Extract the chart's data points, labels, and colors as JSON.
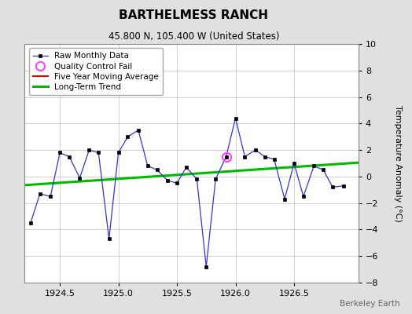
{
  "title": "BARTHELMESS RANCH",
  "subtitle": "45.800 N, 105.400 W (United States)",
  "ylabel": "Temperature Anomaly (°C)",
  "watermark": "Berkeley Earth",
  "xlim": [
    1924.2,
    1927.05
  ],
  "ylim": [
    -8,
    10
  ],
  "xticks": [
    1924.5,
    1925.0,
    1925.5,
    1926.0,
    1926.5
  ],
  "yticks": [
    -8,
    -6,
    -4,
    -2,
    0,
    2,
    4,
    6,
    8,
    10
  ],
  "background_color": "#e0e0e0",
  "plot_bg_color": "#ffffff",
  "raw_x": [
    1924.25,
    1924.33,
    1924.42,
    1924.5,
    1924.58,
    1924.67,
    1924.75,
    1924.83,
    1924.92,
    1925.0,
    1925.08,
    1925.17,
    1925.25,
    1925.33,
    1925.42,
    1925.5,
    1925.58,
    1925.67,
    1925.75,
    1925.83,
    1925.92,
    1926.0,
    1926.08,
    1926.17,
    1926.25,
    1926.33,
    1926.42,
    1926.5,
    1926.58,
    1926.67,
    1926.75,
    1926.83,
    1926.92
  ],
  "raw_y": [
    -3.5,
    -1.3,
    -1.5,
    1.8,
    1.5,
    -0.1,
    2.0,
    1.8,
    -4.7,
    1.8,
    3.0,
    3.5,
    0.8,
    0.5,
    -0.3,
    -0.5,
    0.7,
    -0.2,
    -6.8,
    -0.2,
    1.5,
    4.4,
    1.5,
    2.0,
    1.5,
    1.3,
    -1.7,
    1.0,
    -1.5,
    0.8,
    0.5,
    -0.8,
    -0.7
  ],
  "qc_fail_x": [
    1925.92
  ],
  "qc_fail_y": [
    1.5
  ],
  "trend_x": [
    1924.2,
    1927.05
  ],
  "trend_y": [
    -0.65,
    1.05
  ],
  "raw_color": "#3333cc",
  "raw_marker_color": "#000000",
  "qc_color": "#ff44ff",
  "trend_color": "#00bb00",
  "mavg_color": "#dd0000",
  "title_fontsize": 11,
  "subtitle_fontsize": 8.5,
  "tick_fontsize": 8,
  "ylabel_fontsize": 8,
  "watermark_fontsize": 7.5
}
